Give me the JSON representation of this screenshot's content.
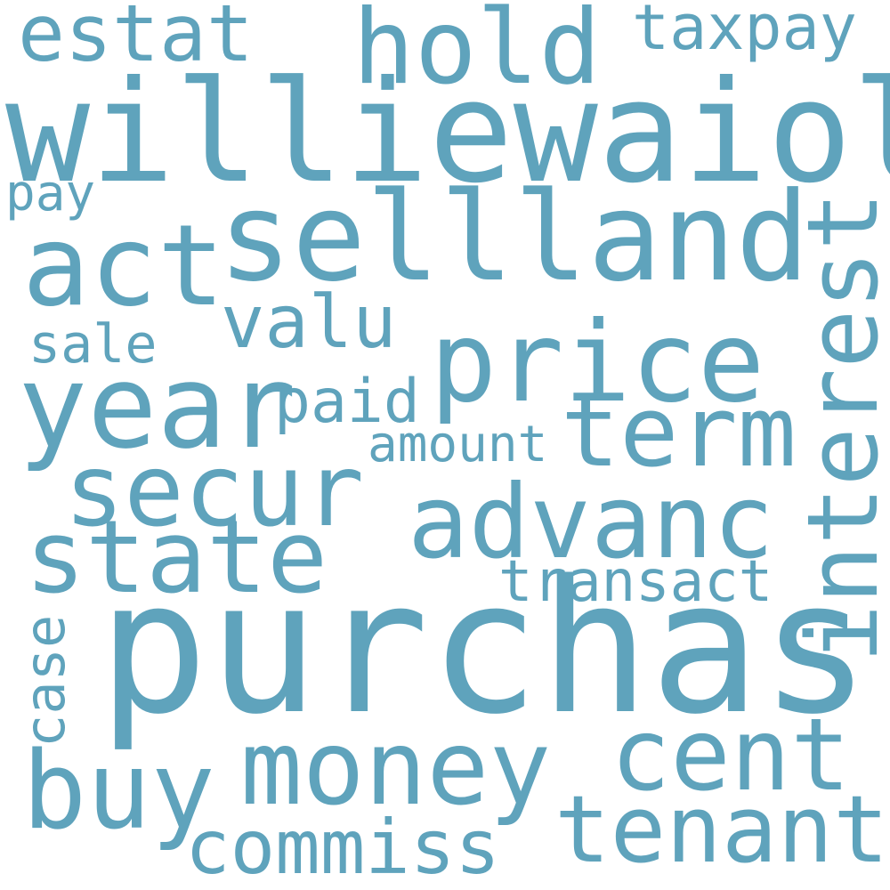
{
  "colors": {
    "background": "#ffffff",
    "word": "#5fa3bc"
  },
  "words": {
    "williewaiola": "williewaiola",
    "purchas": "purchas",
    "sellland": "sellland",
    "act": "act",
    "year": "year",
    "price": "price",
    "term": "term",
    "advanc": "advanc",
    "secur": "secur",
    "state": "state",
    "money": "money",
    "cent": "cent",
    "buy": "buy",
    "tenant": "tenant",
    "commiss": "commiss",
    "hold": "hold",
    "estat": "estat",
    "taxpay": "taxpay",
    "pay": "pay",
    "valu": "valu",
    "sale": "sale",
    "paid": "paid",
    "amount": "amount",
    "transact": "transact",
    "interest": "interest",
    "case": "case"
  }
}
